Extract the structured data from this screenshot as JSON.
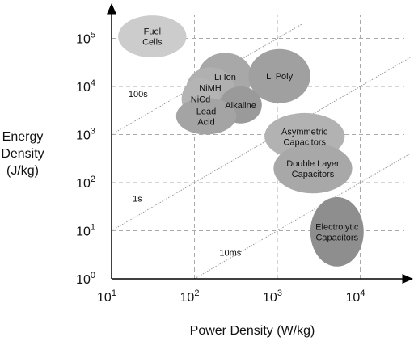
{
  "chart_data": {
    "type": "scatter",
    "title": "",
    "xlabel": "Power Density (W/kg)",
    "ylabel": [
      "Energy",
      "Density",
      "(J/kg)"
    ],
    "x_scale": "log",
    "y_scale": "log",
    "xlim": [
      10,
      40000
    ],
    "ylim": [
      1,
      200000
    ],
    "grid": true,
    "x_ticks": [
      {
        "base": "10",
        "exp": "1",
        "value": 10
      },
      {
        "base": "10",
        "exp": "2",
        "value": 100
      },
      {
        "base": "10",
        "exp": "3",
        "value": 1000
      },
      {
        "base": "10",
        "exp": "4",
        "value": 10000
      }
    ],
    "y_ticks": [
      {
        "base": "10",
        "exp": "0",
        "value": 1
      },
      {
        "base": "10",
        "exp": "1",
        "value": 10
      },
      {
        "base": "10",
        "exp": "2",
        "value": 100
      },
      {
        "base": "10",
        "exp": "3",
        "value": 1000
      },
      {
        "base": "10",
        "exp": "4",
        "value": 10000
      },
      {
        "base": "10",
        "exp": "5",
        "value": 100000
      }
    ],
    "regions": [
      {
        "lines": [
          "Fuel",
          "Cells"
        ],
        "x": [
          12,
          80
        ],
        "y": [
          40000,
          300000
        ],
        "color": "#cccccc"
      },
      {
        "lines": [
          "Li Ion"
        ],
        "x": [
          110,
          500
        ],
        "y": [
          5000,
          50000
        ],
        "color": "#a8a8a8"
      },
      {
        "lines": [
          "Li Poly"
        ],
        "x": [
          450,
          2500
        ],
        "y": [
          4500,
          60000
        ],
        "color": "#a0a0a0"
      },
      {
        "lines": [
          "NiMH"
        ],
        "x": [
          80,
          300
        ],
        "y": [
          3500,
          25000
        ],
        "color": "#b0b0b0"
      },
      {
        "lines": [
          "NiCd"
        ],
        "x": [
          70,
          200
        ],
        "y": [
          2000,
          15000
        ],
        "color": "#b4b4b4"
      },
      {
        "lines": [
          "Alkaline"
        ],
        "x": [
          200,
          650
        ],
        "y": [
          1700,
          10000
        ],
        "color": "#9a9a9a"
      },
      {
        "lines": [
          "Lead",
          "Acid"
        ],
        "x": [
          60,
          320
        ],
        "y": [
          1000,
          5800
        ],
        "color": "#a4a4a4"
      },
      {
        "lines": [
          "Asymmetric",
          "Capacitors"
        ],
        "x": [
          700,
          6500
        ],
        "y": [
          300,
          2800
        ],
        "color": "#b2b2b2"
      },
      {
        "lines": [
          "Double Layer",
          "Capacitors"
        ],
        "x": [
          900,
          8000
        ],
        "y": [
          60,
          650
        ],
        "color": "#a8a8a8"
      },
      {
        "lines": [
          "Electrolytic",
          "Capacitors"
        ],
        "x": [
          2500,
          11000
        ],
        "y": [
          1.8,
          50
        ],
        "color": "#8e8e8e"
      }
    ],
    "time_constant_lines": [
      {
        "label": "100s",
        "label_at": {
          "x": 16,
          "y": 6000
        }
      },
      {
        "label": "1s",
        "label_at": {
          "x": 18,
          "y": 40
        }
      },
      {
        "label": "10ms",
        "label_at": {
          "x": 200,
          "y": 3
        }
      }
    ]
  }
}
